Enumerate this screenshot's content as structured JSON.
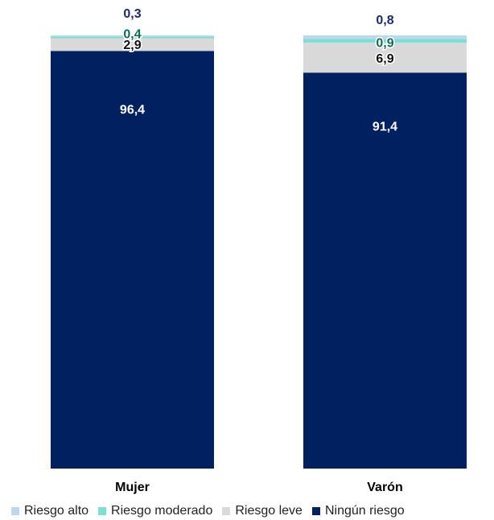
{
  "chart_data": {
    "type": "bar",
    "stacked": true,
    "percent": true,
    "categories": [
      "Mujer",
      "Varón"
    ],
    "series": [
      {
        "name": "Ningún riesgo",
        "color": "#002060",
        "values": [
          96.4,
          91.4
        ],
        "labels": [
          "96,4",
          "91,4"
        ]
      },
      {
        "name": "Riesgo leve",
        "color": "#D9D9D9",
        "values": [
          2.9,
          6.9
        ],
        "labels": [
          "2,9",
          "6,9"
        ]
      },
      {
        "name": "Riesgo moderado",
        "color": "#7FDDD4",
        "values": [
          0.4,
          0.9
        ],
        "labels": [
          "0,4",
          "0,9"
        ]
      },
      {
        "name": "Riesgo alto",
        "color": "#BDD7EE",
        "values": [
          0.3,
          0.8
        ],
        "labels": [
          "0,3",
          "0,8"
        ]
      }
    ],
    "ylim": [
      0,
      100
    ],
    "grid": false,
    "legend": "bottom"
  },
  "legend": [
    {
      "label": "Riesgo alto",
      "color": "#BDD7EE"
    },
    {
      "label": "Riesgo moderado",
      "color": "#7FDDD4"
    },
    {
      "label": "Riesgo leve",
      "color": "#D9D9D9"
    },
    {
      "label": "Ningún riesgo",
      "color": "#002060"
    }
  ]
}
